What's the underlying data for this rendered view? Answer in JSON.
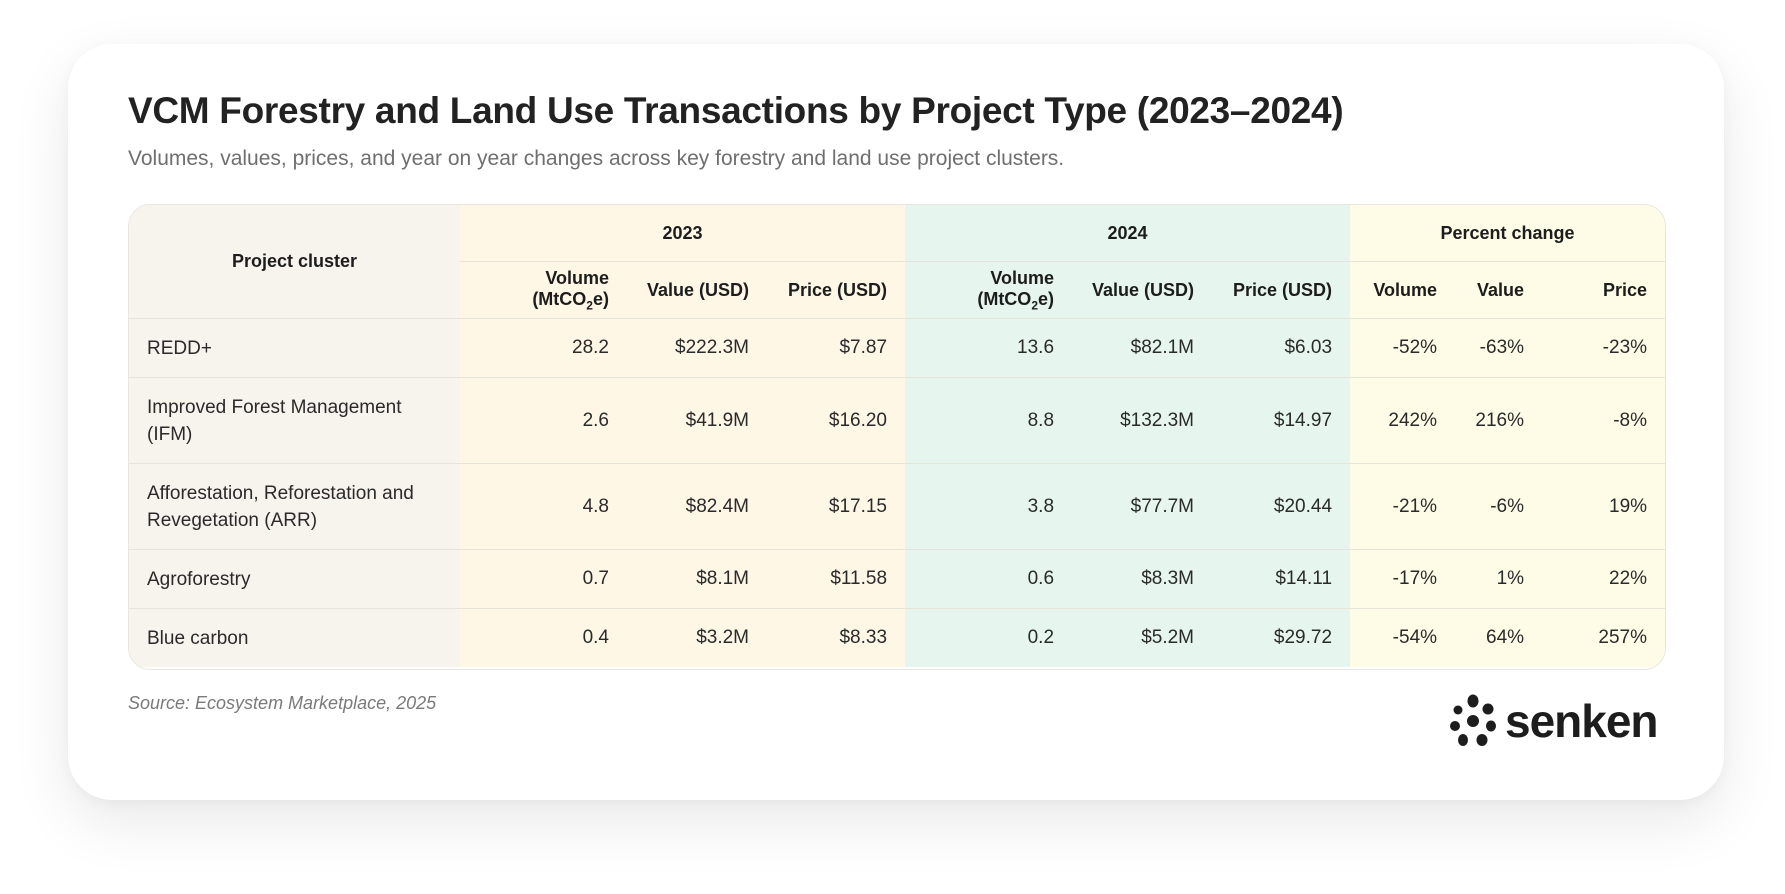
{
  "title": "VCM Forestry and Land Use Transactions by Project Type (2023–2024)",
  "subtitle": "Volumes, values, prices, and year on year changes across key forestry and land use project clusters.",
  "source": "Source: Ecosystem Marketplace, 2025",
  "brand": "senken",
  "colors": {
    "project_bg": "#f7f4ee",
    "year_2023_bg": "#fef7e6",
    "year_2024_bg": "#e6f6ef",
    "percent_bg": "#fefce7"
  },
  "chart_data": {
    "type": "table",
    "title": "VCM Forestry and Land Use Transactions by Project Type (2023–2024)",
    "header": {
      "project": "Project cluster",
      "group_2023": "2023",
      "group_2024": "2024",
      "group_pct": "Percent change",
      "vol_prefix": "Volume (MtCO",
      "vol_sub": "2",
      "vol_suffix": "e)",
      "value": "Value (USD)",
      "price": "Price (USD)",
      "pct_volume": "Volume",
      "pct_value": "Value",
      "pct_price": "Price"
    },
    "rows": [
      {
        "project": "REDD+",
        "vol_2023": "28.2",
        "val_2023": "$222.3M",
        "price_2023": "$7.87",
        "vol_2024": "13.6",
        "val_2024": "$82.1M",
        "price_2024": "$6.03",
        "pct_volume": "-52%",
        "pct_value": "-63%",
        "pct_price": "-23%"
      },
      {
        "project": "Improved Forest Management (IFM)",
        "vol_2023": "2.6",
        "val_2023": "$41.9M",
        "price_2023": "$16.20",
        "vol_2024": "8.8",
        "val_2024": "$132.3M",
        "price_2024": "$14.97",
        "pct_volume": "242%",
        "pct_value": "216%",
        "pct_price": "-8%"
      },
      {
        "project": "Afforestation, Reforestation and Revegetation (ARR)",
        "vol_2023": "4.8",
        "val_2023": "$82.4M",
        "price_2023": "$17.15",
        "vol_2024": "3.8",
        "val_2024": "$77.7M",
        "price_2024": "$20.44",
        "pct_volume": "-21%",
        "pct_value": "-6%",
        "pct_price": "19%"
      },
      {
        "project": "Agroforestry",
        "vol_2023": "0.7",
        "val_2023": "$8.1M",
        "price_2023": "$11.58",
        "vol_2024": "0.6",
        "val_2024": "$8.3M",
        "price_2024": "$14.11",
        "pct_volume": "-17%",
        "pct_value": "1%",
        "pct_price": "22%"
      },
      {
        "project": "Blue carbon",
        "vol_2023": "0.4",
        "val_2023": "$3.2M",
        "price_2023": "$8.33",
        "vol_2024": "0.2",
        "val_2024": "$5.2M",
        "price_2024": "$29.72",
        "pct_volume": "-54%",
        "pct_value": "64%",
        "pct_price": "257%"
      }
    ]
  }
}
